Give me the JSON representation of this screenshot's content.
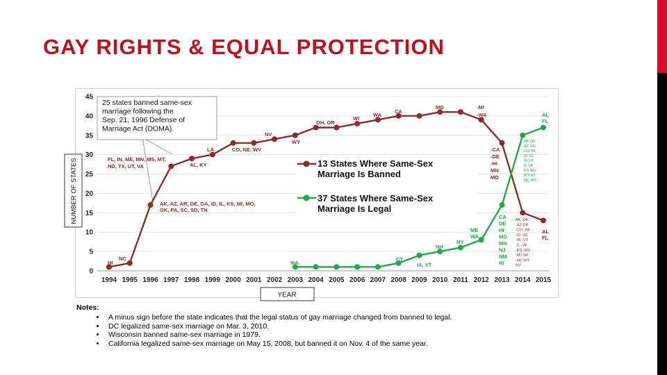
{
  "slide": {
    "title": "GAY RIGHTS & EQUAL PROTECTION",
    "accent_color": "#d50f2a",
    "title_color": "#c0101e"
  },
  "notes": {
    "title": "Notes:",
    "items": [
      "A minus sign before the state indicates that the legal status of gay marriage changed from banned to legal.",
      "DC legalized same-sex marriage on Mar. 3, 2010.",
      "Wisconsin banned same-sex marriage in 1979.",
      "California legalized same-sex marriage on May 15, 2008, but banned it on Nov. 4 of the same year."
    ]
  },
  "chart_data": {
    "type": "line",
    "xlabel": "YEAR",
    "ylabel": "NUMBER OF STATES",
    "ylim": [
      0,
      45
    ],
    "yticks": [
      0,
      5,
      10,
      15,
      20,
      25,
      30,
      35,
      40,
      45
    ],
    "x": [
      1994,
      1995,
      1996,
      1997,
      1998,
      1999,
      2000,
      2001,
      2002,
      2003,
      2004,
      2005,
      2006,
      2007,
      2008,
      2009,
      2010,
      2011,
      2012,
      2013,
      2014,
      2015
    ],
    "series": [
      {
        "name": "13 States Where Same-Sex Marriage Is Banned",
        "color": "#8b2b2b",
        "values": [
          1,
          2,
          17,
          27,
          29,
          30,
          33,
          33,
          34,
          35,
          37,
          37,
          38,
          39,
          40,
          40,
          41,
          41,
          39,
          33,
          15,
          13
        ]
      },
      {
        "name": "37 States Where Same-Sex Marriage Is Legal",
        "color": "#22a84a",
        "values": [
          null,
          null,
          null,
          null,
          null,
          null,
          null,
          null,
          null,
          1,
          1,
          1,
          1,
          1,
          2,
          4,
          5,
          6,
          8,
          17,
          35,
          37
        ]
      }
    ],
    "callout": "25 states banned same-sex marriage following the Sep. 21, 1996 Defense of Marriage Act (DOMA).",
    "annotations_banned": [
      {
        "text": "HI",
        "x": 1994,
        "y": 1
      },
      {
        "text": "NC",
        "x": 1995,
        "y": 2
      },
      {
        "text": "AK, AZ, AR, DE, GA, ID, IL, KS, MI, MO,",
        "x": 1996,
        "y": 17
      },
      {
        "text": "OK, PA, SC, SD, TN",
        "x": 1996,
        "y": 17
      },
      {
        "text": "FL, IN, ME, MN, MS, MT,",
        "x": 1997,
        "y": 27
      },
      {
        "text": "ND, TX, UT, VA",
        "x": 1997,
        "y": 27
      },
      {
        "text": "AL, KY",
        "x": 1998,
        "y": 29
      },
      {
        "text": "LA",
        "x": 1999,
        "y": 30
      },
      {
        "text": "CO, NE, WV",
        "x": 2000,
        "y": 33
      },
      {
        "text": "NV",
        "x": 2002,
        "y": 34
      },
      {
        "text": "WY",
        "x": 2003,
        "y": 35
      },
      {
        "text": "OH, OR",
        "x": 2004,
        "y": 37
      },
      {
        "text": "WI",
        "x": 2006,
        "y": 38
      },
      {
        "text": "WA",
        "x": 2007,
        "y": 39
      },
      {
        "text": "CA",
        "x": 2008,
        "y": 40
      },
      {
        "text": "MD",
        "x": 2010,
        "y": 41
      },
      {
        "text": "-MI",
        "x": 2012,
        "y": 41
      },
      {
        "text": "-WA",
        "x": 2012,
        "y": 40
      },
      {
        "text": "AL",
        "x": 2015,
        "y": 13
      },
      {
        "text": "FL",
        "x": 2015,
        "y": 12
      }
    ],
    "annotations_transition": [
      "-CA",
      "-DE",
      "-HI",
      "MN",
      "MD"
    ],
    "annotations_legal": [
      {
        "text": "MA",
        "x": 2003,
        "y": 1
      },
      {
        "text": "CT",
        "x": 2008,
        "y": 2
      },
      {
        "text": "IA, VT",
        "x": 2009,
        "y": 4
      },
      {
        "text": "NH",
        "x": 2010,
        "y": 5
      },
      {
        "text": "NY",
        "x": 2011,
        "y": 6
      },
      {
        "text": "ME",
        "x": 2012,
        "y": 8
      },
      {
        "text": "WA",
        "x": 2012,
        "y": 8
      },
      {
        "text": "CA",
        "x": 2013,
        "y": 17
      },
      {
        "text": "DE",
        "x": 2013,
        "y": 17
      },
      {
        "text": "HI",
        "x": 2013,
        "y": 17
      },
      {
        "text": "MD",
        "x": 2013,
        "y": 17
      },
      {
        "text": "MN",
        "x": 2013,
        "y": 17
      },
      {
        "text": "NJ",
        "x": 2013,
        "y": 17
      },
      {
        "text": "NM",
        "x": 2013,
        "y": 17
      },
      {
        "text": "RI",
        "x": 2013,
        "y": 17
      },
      {
        "text": "AL",
        "x": 2015,
        "y": 37
      },
      {
        "text": "FL",
        "x": 2015,
        "y": 37
      }
    ],
    "annotations_2014_upper": [
      "AK  OK",
      "AZ  OR",
      "CO  PA",
      "ID  SC",
      "IN  UT",
      "IL  VA",
      "KS  WV",
      "MT  WI",
      "NC  WY"
    ],
    "annotations_2014_lower": [
      "AK -OK",
      "-AZ  OR",
      "-CO -PA",
      "-ID -SC",
      "-IN -UT",
      "-IL -VA",
      "-KS -WV",
      "-MT  WI",
      "-NC  WY",
      "NV"
    ]
  }
}
